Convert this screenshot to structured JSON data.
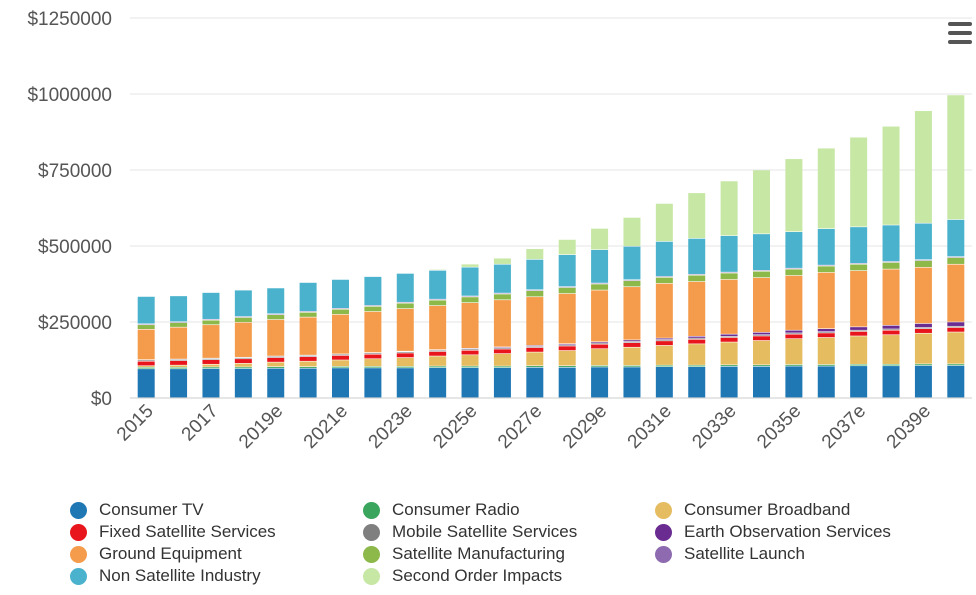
{
  "menu_icon": "hamburger-menu-icon",
  "chart_data": {
    "type": "bar",
    "stacked": true,
    "title": "",
    "xlabel": "",
    "ylabel": "",
    "ylim": [
      0,
      1250000
    ],
    "y_ticks": [
      0,
      250000,
      500000,
      750000,
      1000000,
      1250000
    ],
    "y_tick_labels": [
      "$0",
      "$250000",
      "$500000",
      "$750000",
      "$1000000",
      "$1250000"
    ],
    "x_tick_labels": [
      "2015",
      "2017",
      "2019e",
      "2021e",
      "2023e",
      "2025e",
      "2027e",
      "2029e",
      "2031e",
      "2033e",
      "2035e",
      "2037e",
      "2039e"
    ],
    "grid": true,
    "legend_position": "bottom",
    "categories": [
      "2015",
      "2016",
      "2017",
      "2018e",
      "2019e",
      "2020e",
      "2021e",
      "2022e",
      "2023e",
      "2024e",
      "2025e",
      "2026e",
      "2027e",
      "2028e",
      "2029e",
      "2030e",
      "2031e",
      "2032e",
      "2033e",
      "2034e",
      "2035e",
      "2036e",
      "2037e",
      "2038e",
      "2039e",
      "2040e"
    ],
    "series": [
      {
        "name": "Consumer TV",
        "color": "#1f78b4",
        "values": [
          95000,
          95000,
          96000,
          96000,
          97000,
          97000,
          98000,
          98000,
          98000,
          99000,
          99000,
          99000,
          100000,
          100000,
          101000,
          101000,
          102000,
          102000,
          103000,
          103000,
          104000,
          104000,
          105000,
          105000,
          106000,
          106000
        ]
      },
      {
        "name": "Consumer Radio",
        "color": "#3aa55d",
        "values": [
          5000,
          5000,
          5000,
          5000,
          5000,
          5000,
          5000,
          5000,
          5000,
          5000,
          5000,
          5000,
          5000,
          5000,
          5000,
          5000,
          5000,
          5000,
          5000,
          5000,
          5000,
          5000,
          5000,
          5000,
          5000,
          5000
        ]
      },
      {
        "name": "Consumer Broadband",
        "color": "#e5bc5f",
        "values": [
          5000,
          7000,
          9000,
          12000,
          15000,
          18000,
          21000,
          25000,
          29000,
          33000,
          37000,
          41000,
          45000,
          50000,
          55000,
          60000,
          65000,
          70000,
          75000,
          80000,
          85000,
          89000,
          93000,
          97000,
          101000,
          105000
        ]
      },
      {
        "name": "Fixed Satellite Services",
        "color": "#e8161c",
        "values": [
          15000,
          15000,
          15000,
          15000,
          15000,
          15000,
          15000,
          15000,
          15000,
          15000,
          15000,
          15000,
          15000,
          15000,
          15000,
          15000,
          15000,
          15000,
          15000,
          15000,
          15000,
          15000,
          15000,
          15000,
          15000,
          15000
        ]
      },
      {
        "name": "Mobile Satellite Services",
        "color": "#7f7f7f",
        "values": [
          4000,
          4000,
          4000,
          4000,
          4000,
          4000,
          4000,
          4000,
          4000,
          4000,
          4000,
          4000,
          4000,
          4000,
          4000,
          4000,
          4000,
          4000,
          4000,
          4000,
          4000,
          4000,
          4000,
          4000,
          4000,
          4000
        ]
      },
      {
        "name": "Earth Observation Services",
        "color": "#6a2c91",
        "values": [
          1000,
          1000,
          1000,
          1000,
          1000,
          1000,
          1000,
          1500,
          2000,
          2000,
          2500,
          3000,
          3000,
          3500,
          4000,
          5000,
          5000,
          6000,
          7000,
          8000,
          9000,
          10000,
          11000,
          12000,
          13000,
          14000
        ]
      },
      {
        "name": "Ground Equipment",
        "color": "#f59c4c",
        "values": [
          100000,
          105000,
          110000,
          115000,
          120000,
          125000,
          130000,
          135000,
          140000,
          145000,
          150000,
          155000,
          160000,
          165000,
          170000,
          175000,
          180000,
          180000,
          180000,
          180000,
          180000,
          185000,
          185000,
          185000,
          185000,
          190000
        ]
      },
      {
        "name": "Satellite Manufacturing",
        "color": "#8db84a",
        "values": [
          15000,
          15000,
          15000,
          16000,
          16000,
          16000,
          17000,
          17000,
          18000,
          18000,
          19000,
          19000,
          20000,
          20000,
          20000,
          20000,
          20000,
          21000,
          21000,
          21000,
          21000,
          21000,
          21000,
          22000,
          22000,
          22000
        ]
      },
      {
        "name": "Satellite Launch",
        "color": "#8e6bb0",
        "values": [
          3000,
          3000,
          3000,
          3000,
          3000,
          3000,
          3000,
          3000,
          3000,
          3000,
          3000,
          3000,
          3000,
          3000,
          3000,
          3000,
          3000,
          3000,
          3000,
          3000,
          3000,
          3000,
          3000,
          3000,
          3000,
          3000
        ]
      },
      {
        "name": "Non Satellite Industry",
        "color": "#4ab2cc",
        "values": [
          90000,
          85000,
          88000,
          87000,
          85000,
          95000,
          95000,
          95000,
          95000,
          95000,
          95000,
          95000,
          100000,
          105000,
          110000,
          110000,
          115000,
          118000,
          120000,
          120000,
          120000,
          120000,
          120000,
          120000,
          120000,
          122000
        ]
      },
      {
        "name": "Second Order Impacts",
        "color": "#c7e7a5",
        "values": [
          0,
          0,
          0,
          0,
          0,
          0,
          0,
          0,
          0,
          3000,
          10000,
          20000,
          35000,
          50000,
          70000,
          95000,
          125000,
          150000,
          180000,
          210000,
          240000,
          265000,
          295000,
          325000,
          370000,
          410000
        ]
      }
    ]
  },
  "legend": [
    {
      "label": "Consumer TV",
      "color": "#1f78b4"
    },
    {
      "label": "Consumer Radio",
      "color": "#3aa55d"
    },
    {
      "label": "Consumer Broadband",
      "color": "#e5bc5f"
    },
    {
      "label": "Fixed Satellite Services",
      "color": "#e8161c"
    },
    {
      "label": "Mobile Satellite Services",
      "color": "#7f7f7f"
    },
    {
      "label": "Earth Observation Services",
      "color": "#6a2c91"
    },
    {
      "label": "Ground Equipment",
      "color": "#f59c4c"
    },
    {
      "label": "Satellite Manufacturing",
      "color": "#8db84a"
    },
    {
      "label": "Satellite Launch",
      "color": "#8e6bb0"
    },
    {
      "label": "Non Satellite Industry",
      "color": "#4ab2cc"
    },
    {
      "label": "Second Order Impacts",
      "color": "#c7e7a5"
    }
  ]
}
